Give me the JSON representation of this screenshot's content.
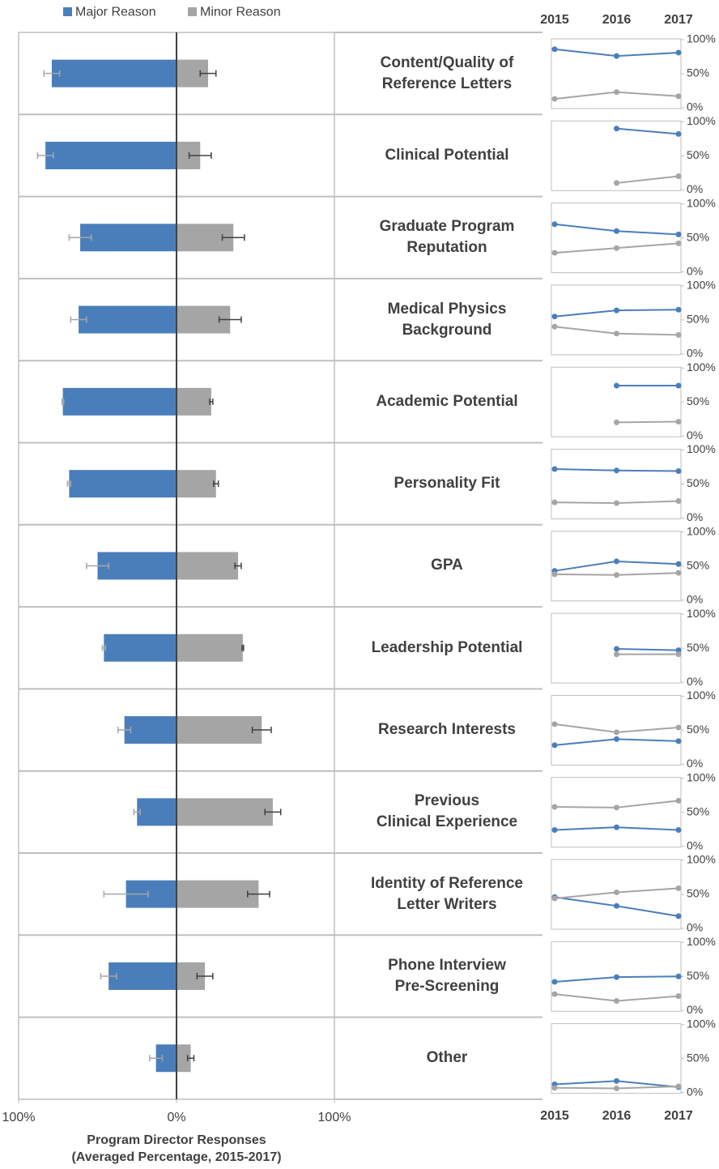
{
  "chart_data": [
    {
      "type": "diverging-bar",
      "categories": [
        "Content/Quality of\nReference Letters",
        "Clinical Potential",
        "Graduate Program\nReputation",
        "Medical Physics\nBackground",
        "Academic Potential",
        "Personality Fit",
        "GPA",
        "Leadership Potential",
        "Research Interests",
        "Previous\nClinical Experience",
        "Identity of Reference\nLetter Writers",
        "Phone Interview\nPre-Screening",
        "Other"
      ],
      "series": [
        {
          "name": "Major Reason",
          "color": "#4a7ebb",
          "errorcolor": "#a6a6a6",
          "values": [
            -79,
            -83,
            -61,
            -62,
            -72,
            -68,
            -50,
            -46,
            -33,
            -25,
            -32,
            -43,
            -13
          ],
          "errors": [
            5,
            5,
            7,
            5,
            0.5,
            1,
            7,
            1,
            4,
            2,
            14,
            5,
            4
          ]
        },
        {
          "name": "Minor Reason",
          "color": "#a5a5a5",
          "errorcolor": "#404040",
          "values": [
            20,
            15,
            36,
            34,
            22,
            25,
            39,
            42,
            54,
            61,
            52,
            18,
            9
          ],
          "errors": [
            5,
            7,
            7,
            7,
            1,
            1.5,
            2,
            0.5,
            6,
            5,
            7,
            5,
            2
          ]
        }
      ],
      "xlim": [
        -100,
        100
      ],
      "xticks": [
        {
          "value": -100,
          "label": "100%"
        },
        {
          "value": 0,
          "label": "0%"
        },
        {
          "value": 100,
          "label": "100%"
        }
      ],
      "xlabel": [
        "Program Director Responses",
        "(Averaged Percentage, 2015-2017)"
      ]
    },
    {
      "type": "line",
      "categories": [
        "2015",
        "2016",
        "2017"
      ],
      "ylim": [
        0,
        100
      ],
      "yticks": [
        {
          "value": 0,
          "label": "0%"
        },
        {
          "value": 50,
          "label": "50%"
        },
        {
          "value": 100,
          "label": "100%"
        }
      ],
      "series": [
        {
          "name": "Major Reason",
          "color": "#4a7ebb",
          "values": [
            86,
            76,
            81
          ]
        },
        {
          "name": "Minor Reason",
          "color": "#a5a5a5",
          "values": [
            13,
            23,
            17
          ]
        }
      ]
    },
    {
      "type": "line",
      "categories": [
        "2015",
        "2016",
        "2017"
      ],
      "ylim": [
        0,
        100
      ],
      "yticks": [
        {
          "value": 0,
          "label": "0%"
        },
        {
          "value": 50,
          "label": "50%"
        },
        {
          "value": 100,
          "label": "100%"
        }
      ],
      "series": [
        {
          "name": "Major Reason",
          "color": "#4a7ebb",
          "values": [
            null,
            90,
            82
          ]
        },
        {
          "name": "Minor Reason",
          "color": "#a5a5a5",
          "values": [
            null,
            10,
            20
          ]
        }
      ]
    },
    {
      "type": "line",
      "categories": [
        "2015",
        "2016",
        "2017"
      ],
      "ylim": [
        0,
        100
      ],
      "yticks": [
        {
          "value": 0,
          "label": "0%"
        },
        {
          "value": 50,
          "label": "50%"
        },
        {
          "value": 100,
          "label": "100%"
        }
      ],
      "series": [
        {
          "name": "Major Reason",
          "color": "#4a7ebb",
          "values": [
            70,
            60,
            55
          ]
        },
        {
          "name": "Minor Reason",
          "color": "#a5a5a5",
          "values": [
            28,
            35,
            42
          ]
        }
      ]
    },
    {
      "type": "line",
      "categories": [
        "2015",
        "2016",
        "2017"
      ],
      "ylim": [
        0,
        100
      ],
      "yticks": [
        {
          "value": 0,
          "label": "0%"
        },
        {
          "value": 50,
          "label": "50%"
        },
        {
          "value": 100,
          "label": "100%"
        }
      ],
      "series": [
        {
          "name": "Major Reason",
          "color": "#4a7ebb",
          "values": [
            55,
            64,
            65
          ]
        },
        {
          "name": "Minor Reason",
          "color": "#a5a5a5",
          "values": [
            40,
            30,
            28
          ]
        }
      ]
    },
    {
      "type": "line",
      "categories": [
        "2015",
        "2016",
        "2017"
      ],
      "ylim": [
        0,
        100
      ],
      "yticks": [
        {
          "value": 0,
          "label": "0%"
        },
        {
          "value": 50,
          "label": "50%"
        },
        {
          "value": 100,
          "label": "100%"
        }
      ],
      "series": [
        {
          "name": "Major Reason",
          "color": "#4a7ebb",
          "values": [
            null,
            74,
            74
          ]
        },
        {
          "name": "Minor Reason",
          "color": "#a5a5a5",
          "values": [
            null,
            20,
            21
          ]
        }
      ]
    },
    {
      "type": "line",
      "categories": [
        "2015",
        "2016",
        "2017"
      ],
      "ylim": [
        0,
        100
      ],
      "yticks": [
        {
          "value": 0,
          "label": "0%"
        },
        {
          "value": 50,
          "label": "50%"
        },
        {
          "value": 100,
          "label": "100%"
        }
      ],
      "series": [
        {
          "name": "Major Reason",
          "color": "#4a7ebb",
          "values": [
            72,
            70,
            69
          ]
        },
        {
          "name": "Minor Reason",
          "color": "#a5a5a5",
          "values": [
            23,
            22,
            25
          ]
        }
      ]
    },
    {
      "type": "line",
      "categories": [
        "2015",
        "2016",
        "2017"
      ],
      "ylim": [
        0,
        100
      ],
      "yticks": [
        {
          "value": 0,
          "label": "0%"
        },
        {
          "value": 50,
          "label": "50%"
        },
        {
          "value": 100,
          "label": "100%"
        }
      ],
      "series": [
        {
          "name": "Major Reason",
          "color": "#4a7ebb",
          "values": [
            43,
            57,
            53
          ]
        },
        {
          "name": "Minor Reason",
          "color": "#a5a5a5",
          "values": [
            38,
            37,
            40
          ]
        }
      ]
    },
    {
      "type": "line",
      "categories": [
        "2015",
        "2016",
        "2017"
      ],
      "ylim": [
        0,
        100
      ],
      "yticks": [
        {
          "value": 0,
          "label": "0%"
        },
        {
          "value": 50,
          "label": "50%"
        },
        {
          "value": 100,
          "label": "100%"
        }
      ],
      "series": [
        {
          "name": "Major Reason",
          "color": "#4a7ebb",
          "values": [
            null,
            49,
            47
          ]
        },
        {
          "name": "Minor Reason",
          "color": "#a5a5a5",
          "values": [
            null,
            41,
            41
          ]
        }
      ]
    },
    {
      "type": "line",
      "categories": [
        "2015",
        "2016",
        "2017"
      ],
      "ylim": [
        0,
        100
      ],
      "yticks": [
        {
          "value": 0,
          "label": "0%"
        },
        {
          "value": 50,
          "label": "50%"
        },
        {
          "value": 100,
          "label": "100%"
        }
      ],
      "series": [
        {
          "name": "Major Reason",
          "color": "#4a7ebb",
          "values": [
            28,
            37,
            34
          ]
        },
        {
          "name": "Minor Reason",
          "color": "#a5a5a5",
          "values": [
            59,
            47,
            54
          ]
        }
      ]
    },
    {
      "type": "line",
      "categories": [
        "2015",
        "2016",
        "2017"
      ],
      "ylim": [
        0,
        100
      ],
      "yticks": [
        {
          "value": 0,
          "label": "0%"
        },
        {
          "value": 50,
          "label": "50%"
        },
        {
          "value": 100,
          "label": "100%"
        }
      ],
      "series": [
        {
          "name": "Major Reason",
          "color": "#4a7ebb",
          "values": [
            24,
            28,
            24
          ]
        },
        {
          "name": "Minor Reason",
          "color": "#a5a5a5",
          "values": [
            58,
            57,
            67
          ]
        }
      ]
    },
    {
      "type": "line",
      "categories": [
        "2015",
        "2016",
        "2017"
      ],
      "ylim": [
        0,
        100
      ],
      "yticks": [
        {
          "value": 0,
          "label": "0%"
        },
        {
          "value": 50,
          "label": "50%"
        },
        {
          "value": 100,
          "label": "100%"
        }
      ],
      "series": [
        {
          "name": "Major Reason",
          "color": "#4a7ebb",
          "values": [
            46,
            33,
            18
          ]
        },
        {
          "name": "Minor Reason",
          "color": "#a5a5a5",
          "values": [
            44,
            53,
            59
          ]
        }
      ]
    },
    {
      "type": "line",
      "categories": [
        "2015",
        "2016",
        "2017"
      ],
      "ylim": [
        0,
        100
      ],
      "yticks": [
        {
          "value": 0,
          "label": "0%"
        },
        {
          "value": 50,
          "label": "50%"
        },
        {
          "value": 100,
          "label": "100%"
        }
      ],
      "series": [
        {
          "name": "Major Reason",
          "color": "#4a7ebb",
          "values": [
            42,
            49,
            50
          ]
        },
        {
          "name": "Minor Reason",
          "color": "#a5a5a5",
          "values": [
            24,
            14,
            21
          ]
        }
      ]
    },
    {
      "type": "line",
      "categories": [
        "2015",
        "2016",
        "2017"
      ],
      "ylim": [
        0,
        100
      ],
      "yticks": [
        {
          "value": 0,
          "label": "0%"
        },
        {
          "value": 50,
          "label": "50%"
        },
        {
          "value": 100,
          "label": "100%"
        }
      ],
      "series": [
        {
          "name": "Major Reason",
          "color": "#4a7ebb",
          "values": [
            12,
            17,
            8
          ]
        },
        {
          "name": "Minor Reason",
          "color": "#a5a5a5",
          "values": [
            7,
            6,
            9
          ]
        }
      ]
    }
  ]
}
